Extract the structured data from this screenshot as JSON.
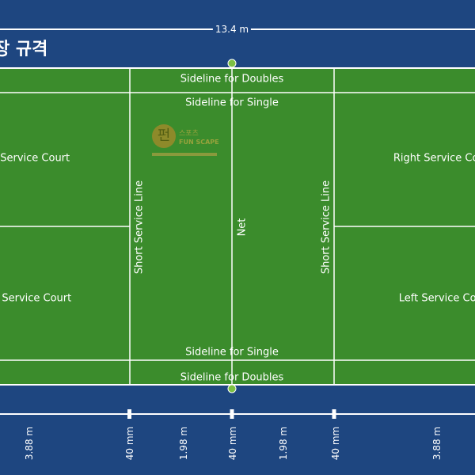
{
  "title": "장 규격",
  "top_dimension": "13.4 m",
  "labels": {
    "sideline_doubles": "Sideline for Doubles",
    "sideline_single": "Sideline for Single",
    "right_service_court": "Right Service Court",
    "left_service_court": "Left Service Court",
    "short_service_line": "Short Service Line",
    "net": "Net"
  },
  "dimensions": [
    "3.88 m",
    "40 mm",
    "1.98 m",
    "40 mm",
    "1.98 m",
    "40 mm",
    "3.88 m"
  ],
  "colors": {
    "background": "#1e4680",
    "court": "#3b8c2c",
    "line": "#ffffff",
    "net_post": "#7cc043"
  },
  "logo": {
    "mark": "펀",
    "line1": "스포츠",
    "line2": "FUN SCAPE"
  }
}
